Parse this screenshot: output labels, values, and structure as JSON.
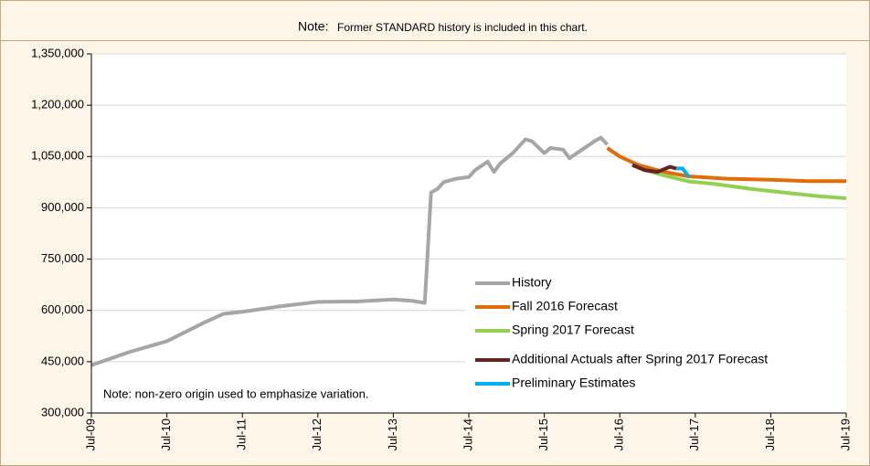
{
  "chart_data": {
    "type": "line",
    "title_prefix": "Note:",
    "title": "Former STANDARD history is included in this chart.",
    "annotation": "Note: non-zero origin used to emphasize variation.",
    "legend": "lower right",
    "grid": true,
    "xlim": [
      "2009-07",
      "2019-07"
    ],
    "xticks": [
      {
        "value": "2009-07",
        "label": "Jul-09"
      },
      {
        "value": "2010-07",
        "label": "Jul-10"
      },
      {
        "value": "2011-07",
        "label": "Jul-11"
      },
      {
        "value": "2012-07",
        "label": "Jul-12"
      },
      {
        "value": "2013-07",
        "label": "Jul-13"
      },
      {
        "value": "2014-07",
        "label": "Jul-14"
      },
      {
        "value": "2015-07",
        "label": "Jul-15"
      },
      {
        "value": "2016-07",
        "label": "Jul-16"
      },
      {
        "value": "2017-07",
        "label": "Jul-17"
      },
      {
        "value": "2018-07",
        "label": "Jul-18"
      },
      {
        "value": "2019-07",
        "label": "Jul-19"
      }
    ],
    "ylim": [
      300000,
      1350000
    ],
    "yticks": [
      {
        "value": 300000,
        "label": "300,000"
      },
      {
        "value": 450000,
        "label": "450,000"
      },
      {
        "value": 600000,
        "label": "600,000"
      },
      {
        "value": 750000,
        "label": "750,000"
      },
      {
        "value": 900000,
        "label": "900,000"
      },
      {
        "value": 1050000,
        "label": "1,050,000"
      },
      {
        "value": 1200000,
        "label": "1,200,000"
      },
      {
        "value": 1350000,
        "label": "1,350,000"
      }
    ],
    "series": [
      {
        "name": "History",
        "color": "#a6a6a6",
        "x": [
          "2009-07",
          "2010-01",
          "2010-07",
          "2011-01",
          "2011-04",
          "2011-07",
          "2012-01",
          "2012-07",
          "2013-01",
          "2013-07",
          "2013-10",
          "2013-12",
          "2014-01",
          "2014-02",
          "2014-03",
          "2014-05",
          "2014-07",
          "2014-08",
          "2014-10",
          "2014-11",
          "2014-12",
          "2015-02",
          "2015-03",
          "2015-04",
          "2015-05",
          "2015-07",
          "2015-08",
          "2015-10",
          "2015-11",
          "2016-01",
          "2016-03",
          "2016-04",
          "2016-05"
        ],
        "values": [
          440000,
          478000,
          510000,
          565000,
          590000,
          596000,
          612000,
          625000,
          626000,
          632000,
          628000,
          622000,
          945000,
          955000,
          975000,
          985000,
          990000,
          1010000,
          1035000,
          1005000,
          1030000,
          1060000,
          1080000,
          1100000,
          1095000,
          1060000,
          1075000,
          1070000,
          1045000,
          1070000,
          1095000,
          1105000,
          1085000
        ]
      },
      {
        "name": "Fall 2016 Forecast",
        "color": "#e36c09",
        "x": [
          "2016-05",
          "2016-07",
          "2016-10",
          "2017-02",
          "2017-06",
          "2017-12",
          "2018-07",
          "2019-01",
          "2019-07"
        ],
        "values": [
          1075000,
          1050000,
          1025000,
          1005000,
          992000,
          985000,
          982000,
          978000,
          978000
        ]
      },
      {
        "name": "Spring 2017 Forecast",
        "color": "#92d050",
        "x": [
          "2016-09",
          "2016-11",
          "2017-02",
          "2017-06",
          "2017-10",
          "2018-04",
          "2018-10",
          "2019-02",
          "2019-07"
        ],
        "values": [
          1025000,
          1010000,
          995000,
          977000,
          970000,
          955000,
          943000,
          935000,
          928000
        ]
      },
      {
        "name": "Additional Actuals after Spring 2017 Forecast",
        "color": "#632523",
        "x": [
          "2016-09",
          "2016-11",
          "2017-01",
          "2017-03",
          "2017-04"
        ],
        "values": [
          1025000,
          1010000,
          1005000,
          1020000,
          1015000
        ]
      },
      {
        "name": "Preliminary Estimates",
        "color": "#00b0f0",
        "x": [
          "2017-04",
          "2017-05",
          "2017-06"
        ],
        "values": [
          1015000,
          1015000,
          990000
        ]
      }
    ]
  }
}
